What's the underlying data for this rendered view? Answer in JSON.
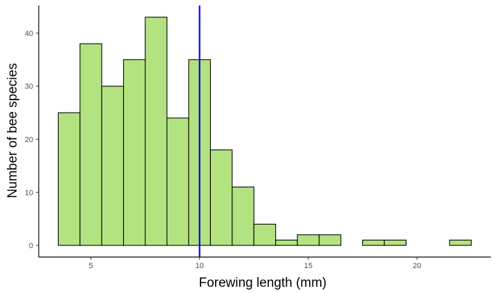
{
  "chart_data": {
    "type": "bar",
    "subtype": "histogram",
    "xlabel": "Forewing length (mm)",
    "ylabel": "Number of bee species",
    "xlim": [
      2.6,
      23.4
    ],
    "ylim": [
      -2.2,
      45.2
    ],
    "x_ticks": [
      5,
      10,
      15,
      20
    ],
    "y_ticks": [
      0,
      10,
      20,
      30,
      40
    ],
    "bins": [
      {
        "x0": 3.5,
        "x1": 4.5,
        "count": 25
      },
      {
        "x0": 4.5,
        "x1": 5.5,
        "count": 38
      },
      {
        "x0": 5.5,
        "x1": 6.5,
        "count": 30
      },
      {
        "x0": 6.5,
        "x1": 7.5,
        "count": 35
      },
      {
        "x0": 7.5,
        "x1": 8.5,
        "count": 43
      },
      {
        "x0": 8.5,
        "x1": 9.5,
        "count": 24
      },
      {
        "x0": 9.5,
        "x1": 10.5,
        "count": 35
      },
      {
        "x0": 10.5,
        "x1": 11.5,
        "count": 18
      },
      {
        "x0": 11.5,
        "x1": 12.5,
        "count": 11
      },
      {
        "x0": 12.5,
        "x1": 13.5,
        "count": 4
      },
      {
        "x0": 13.5,
        "x1": 14.5,
        "count": 1
      },
      {
        "x0": 14.5,
        "x1": 15.5,
        "count": 2
      },
      {
        "x0": 15.5,
        "x1": 16.5,
        "count": 2
      },
      {
        "x0": 16.5,
        "x1": 17.5,
        "count": 0
      },
      {
        "x0": 17.5,
        "x1": 18.5,
        "count": 1
      },
      {
        "x0": 18.5,
        "x1": 19.5,
        "count": 1
      },
      {
        "x0": 19.5,
        "x1": 20.5,
        "count": 0
      },
      {
        "x0": 20.5,
        "x1": 21.5,
        "count": 0
      },
      {
        "x0": 21.5,
        "x1": 22.5,
        "count": 1
      }
    ],
    "reference_line": {
      "x": 10,
      "color": "#0000ee"
    },
    "bar_fill": "#b3e380",
    "bar_stroke": "#000000",
    "grid": false,
    "legend": "none"
  }
}
